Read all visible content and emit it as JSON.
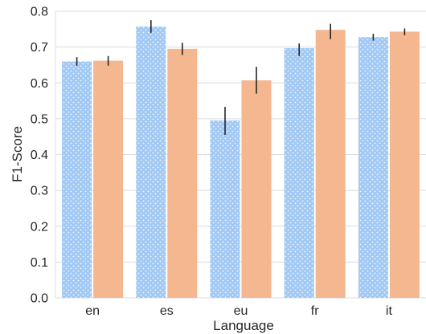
{
  "chart_data": {
    "type": "bar",
    "xlabel": "Language",
    "ylabel": "F1-Score",
    "categories": [
      "en",
      "es",
      "eu",
      "fr",
      "it"
    ],
    "ylim": [
      0.0,
      0.8
    ],
    "yticks": [
      "0.0",
      "0.1",
      "0.2",
      "0.3",
      "0.4",
      "0.5",
      "0.6",
      "0.7",
      "0.8"
    ],
    "grid": "horizontal",
    "legend": "none",
    "series": [
      {
        "color": "#a1c9f4",
        "pattern": "dotted",
        "values": [
          0.66,
          0.757,
          0.495,
          0.697,
          0.728
        ],
        "error_low": [
          0.648,
          0.74,
          0.455,
          0.675,
          0.718
        ],
        "error_high": [
          0.672,
          0.775,
          0.533,
          0.71,
          0.737
        ]
      },
      {
        "color": "#f5b78f",
        "pattern": "solid",
        "values": [
          0.662,
          0.695,
          0.607,
          0.748,
          0.743
        ],
        "error_low": [
          0.648,
          0.678,
          0.57,
          0.722,
          0.733
        ],
        "error_high": [
          0.675,
          0.712,
          0.645,
          0.765,
          0.752
        ]
      }
    ]
  }
}
